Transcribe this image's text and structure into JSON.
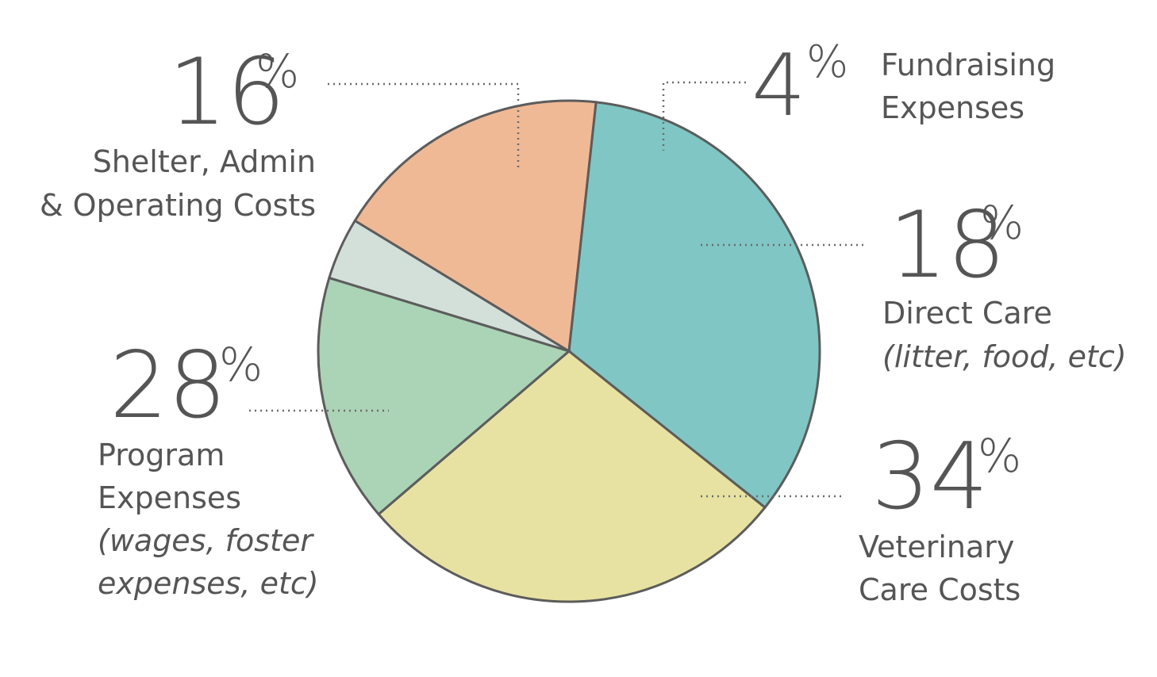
{
  "chart_data": {
    "type": "pie",
    "slices": [
      {
        "key": "fundraising",
        "value": 4,
        "percent_label": "4",
        "label_lines": [
          "Fundraising",
          "Expenses"
        ],
        "italic_lines": [],
        "color": "#D3E0D9"
      },
      {
        "key": "direct",
        "value": 18,
        "percent_label": "18",
        "label_lines": [
          "Direct Care"
        ],
        "italic_lines": [
          "(litter, food, etc)"
        ],
        "color": "#F0B995"
      },
      {
        "key": "vet",
        "value": 34,
        "percent_label": "34",
        "label_lines": [
          "Veterinary",
          "Care Costs"
        ],
        "italic_lines": [],
        "color": "#80C6C4"
      },
      {
        "key": "program",
        "value": 28,
        "percent_label": "28",
        "label_lines": [
          "Program",
          "Expenses"
        ],
        "italic_lines": [
          "(wages, foster",
          "expenses, etc)"
        ],
        "color": "#E8E2A2"
      },
      {
        "key": "shelter",
        "value": 16,
        "percent_label": "16",
        "label_lines": [
          "Shelter, Admin",
          "& Operating Costs"
        ],
        "italic_lines": [],
        "color": "#ABD3B5"
      }
    ],
    "percent_sign": "%",
    "outline_color": "#5C5C5C",
    "text_color": "#555555"
  }
}
